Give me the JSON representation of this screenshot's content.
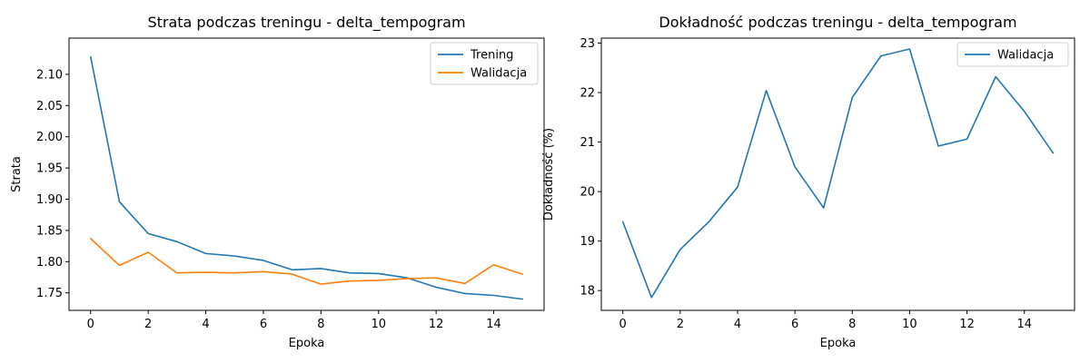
{
  "chart_data": [
    {
      "type": "line",
      "title": "Strata podczas treningu - delta_tempogram",
      "xlabel": "Epoka",
      "ylabel": "Strata",
      "xlim": [
        -0.75,
        15.75
      ],
      "ylim": [
        1.722,
        2.158
      ],
      "xticks": [
        0,
        2,
        4,
        6,
        8,
        10,
        12,
        14
      ],
      "xtick_labels": [
        "0",
        "2",
        "4",
        "6",
        "8",
        "10",
        "12",
        "14"
      ],
      "yticks": [
        1.75,
        1.8,
        1.85,
        1.9,
        1.95,
        2.0,
        2.05,
        2.1
      ],
      "ytick_labels": [
        "1.75",
        "1.80",
        "1.85",
        "1.90",
        "1.95",
        "2.00",
        "2.05",
        "2.10"
      ],
      "grid": false,
      "legend": "top-right",
      "x": [
        0,
        1,
        2,
        3,
        4,
        5,
        6,
        7,
        8,
        9,
        10,
        11,
        12,
        13,
        14,
        15
      ],
      "series": [
        {
          "name": "Trening",
          "color": "#1f77b4",
          "values": [
            2.128,
            1.896,
            1.845,
            1.832,
            1.813,
            1.809,
            1.802,
            1.787,
            1.789,
            1.782,
            1.781,
            1.774,
            1.759,
            1.749,
            1.746,
            1.74
          ]
        },
        {
          "name": "Walidacja",
          "color": "#ff7f0e",
          "values": [
            1.837,
            1.794,
            1.815,
            1.782,
            1.783,
            1.782,
            1.784,
            1.78,
            1.764,
            1.769,
            1.77,
            1.773,
            1.774,
            1.765,
            1.795,
            1.78
          ]
        }
      ]
    },
    {
      "type": "line",
      "title": "Dokładność podczas treningu - delta_tempogram",
      "xlabel": "Epoka",
      "ylabel": "Dokładność (%)",
      "xlim": [
        -0.75,
        15.75
      ],
      "ylim": [
        17.6,
        23.1
      ],
      "xticks": [
        0,
        2,
        4,
        6,
        8,
        10,
        12,
        14
      ],
      "xtick_labels": [
        "0",
        "2",
        "4",
        "6",
        "8",
        "10",
        "12",
        "14"
      ],
      "yticks": [
        18,
        19,
        20,
        21,
        22,
        23
      ],
      "ytick_labels": [
        "18",
        "19",
        "20",
        "21",
        "22",
        "23"
      ],
      "grid": false,
      "legend": "top-right",
      "x": [
        0,
        1,
        2,
        3,
        4,
        5,
        6,
        7,
        8,
        9,
        10,
        11,
        12,
        13,
        14,
        15
      ],
      "series": [
        {
          "name": "Walidacja",
          "color": "#1f77b4",
          "values": [
            19.39,
            17.86,
            18.83,
            19.39,
            20.09,
            22.04,
            20.5,
            19.67,
            21.9,
            22.74,
            22.88,
            20.92,
            21.06,
            22.32,
            21.62,
            20.78
          ]
        }
      ]
    }
  ]
}
